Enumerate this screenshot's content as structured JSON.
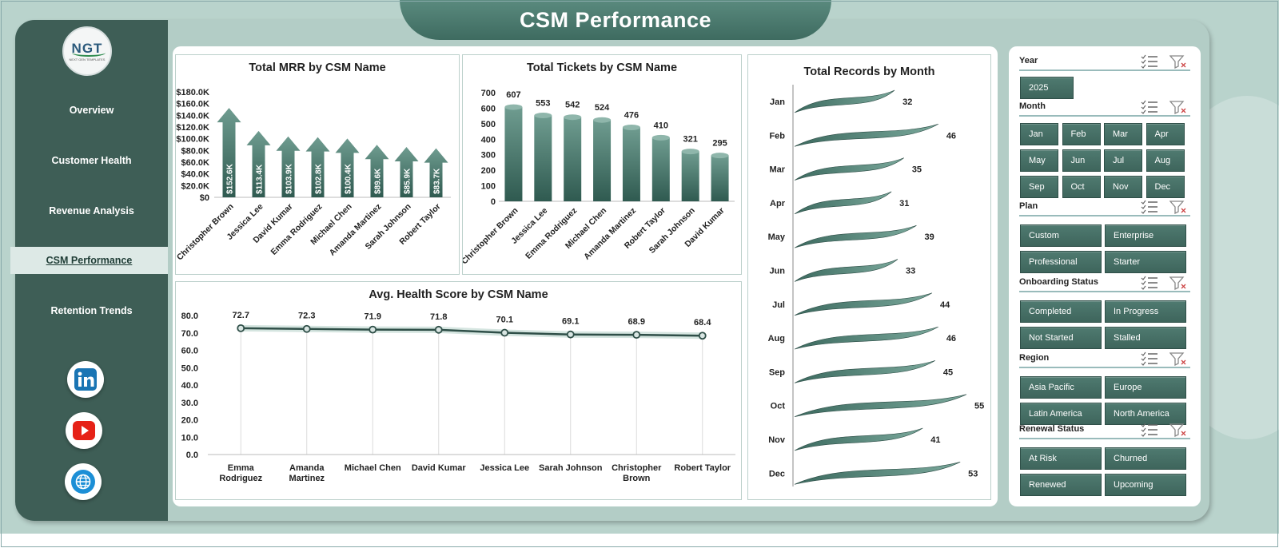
{
  "app": {
    "title": "CSM Performance"
  },
  "logo": {
    "text": "NGT",
    "tagline": "NEXT GEN TEMPLATES"
  },
  "nav": {
    "items": [
      "Overview",
      "Customer Health",
      "Revenue Analysis",
      "CSM Performance",
      "Retention Trends"
    ],
    "active": "CSM Performance"
  },
  "social": [
    "linkedin-icon",
    "youtube-icon",
    "globe-icon"
  ],
  "colors": {
    "sidebar": "#3e5e56",
    "accent": "#4a7c70",
    "background": "#b9d3cc"
  },
  "chart_data": [
    {
      "type": "bar",
      "title": "Total MRR by CSM Name",
      "categories": [
        "Christopher Brown",
        "Jessica Lee",
        "David Kumar",
        "Emma Rodriguez",
        "Michael Chen",
        "Amanda Martinez",
        "Sarah Johnson",
        "Robert Taylor"
      ],
      "values": [
        152.6,
        113.4,
        103.9,
        102.8,
        100.4,
        89.6,
        85.9,
        83.7
      ],
      "data_labels": [
        "$152.6K",
        "$113.4K",
        "$103.9K",
        "$102.8K",
        "$100.4K",
        "$89.6K",
        "$85.9K",
        "$83.7K"
      ],
      "yticks": [
        "$0",
        "$20.0K",
        "$40.0K",
        "$60.0K",
        "$80.0K",
        "$100.0K",
        "$120.0K",
        "$140.0K",
        "$160.0K",
        "$180.0K"
      ],
      "ylim": [
        0,
        180
      ]
    },
    {
      "type": "bar",
      "title": "Total Tickets by CSM Name",
      "categories": [
        "Christopher Brown",
        "Jessica Lee",
        "Emma Rodriguez",
        "Michael Chen",
        "Amanda Martinez",
        "Robert Taylor",
        "Sarah Johnson",
        "David Kumar"
      ],
      "values": [
        607,
        553,
        542,
        524,
        476,
        410,
        321,
        295
      ],
      "yticks": [
        "0",
        "100",
        "200",
        "300",
        "400",
        "500",
        "600",
        "700"
      ],
      "ylim": [
        0,
        700
      ]
    },
    {
      "type": "line",
      "title": "Avg. Health Score by CSM Name",
      "categories": [
        "Emma Rodriguez",
        "Amanda Martinez",
        "Michael Chen",
        "David Kumar",
        "Jessica Lee",
        "Sarah Johnson",
        "Christopher Brown",
        "Robert Taylor"
      ],
      "values": [
        72.7,
        72.3,
        71.9,
        71.8,
        70.1,
        69.1,
        68.9,
        68.4
      ],
      "yticks": [
        "0.0",
        "10.0",
        "20.0",
        "30.0",
        "40.0",
        "50.0",
        "60.0",
        "70.0",
        "80.0"
      ],
      "ylim": [
        0,
        80
      ]
    },
    {
      "type": "bar",
      "title": "Total Records by Month",
      "categories": [
        "Jan",
        "Feb",
        "Mar",
        "Apr",
        "May",
        "Jun",
        "Jul",
        "Aug",
        "Sep",
        "Oct",
        "Nov",
        "Dec"
      ],
      "values": [
        32,
        46,
        35,
        31,
        39,
        33,
        44,
        46,
        45,
        55,
        41,
        53
      ]
    }
  ],
  "slicers": {
    "year": {
      "label": "Year",
      "items": [
        "2025"
      ]
    },
    "month": {
      "label": "Month",
      "items": [
        "Jan",
        "Feb",
        "Mar",
        "Apr",
        "May",
        "Jun",
        "Jul",
        "Aug",
        "Sep",
        "Oct",
        "Nov",
        "Dec"
      ]
    },
    "plan": {
      "label": "Plan",
      "items": [
        "Custom",
        "Enterprise",
        "Professional",
        "Starter"
      ]
    },
    "onboarding": {
      "label": "Onboarding Status",
      "items": [
        "Completed",
        "In Progress",
        "Not Started",
        "Stalled"
      ]
    },
    "region": {
      "label": "Region",
      "items": [
        "Asia Pacific",
        "Europe",
        "Latin America",
        "North America"
      ]
    },
    "renewal": {
      "label": "Renewal Status",
      "items": [
        "At Risk",
        "Churned",
        "Renewed",
        "Upcoming"
      ]
    }
  }
}
